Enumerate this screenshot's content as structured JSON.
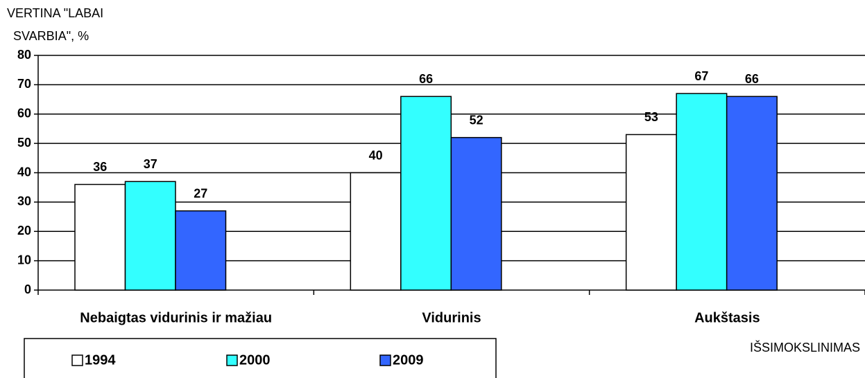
{
  "chart_data": {
    "type": "bar",
    "ylabel_lines": [
      "VERTINA \"LABAI",
      "SVARBIA\", %"
    ],
    "xlabel": "IŠSIMOKSLINIMAS",
    "categories": [
      "Nebaigtas vidurinis ir mažiau",
      "Vidurinis",
      "Aukštasis"
    ],
    "series": [
      {
        "name": "1994",
        "color": "#ffffff",
        "values": [
          36,
          40,
          53
        ]
      },
      {
        "name": "2000",
        "color": "#33ffff",
        "values": [
          37,
          66,
          67
        ]
      },
      {
        "name": "2009",
        "color": "#3366ff",
        "values": [
          27,
          52,
          66
        ]
      }
    ],
    "ylim": [
      0,
      80
    ],
    "yticks": [
      0,
      10,
      20,
      30,
      40,
      50,
      60,
      70,
      80
    ],
    "grid": true
  }
}
